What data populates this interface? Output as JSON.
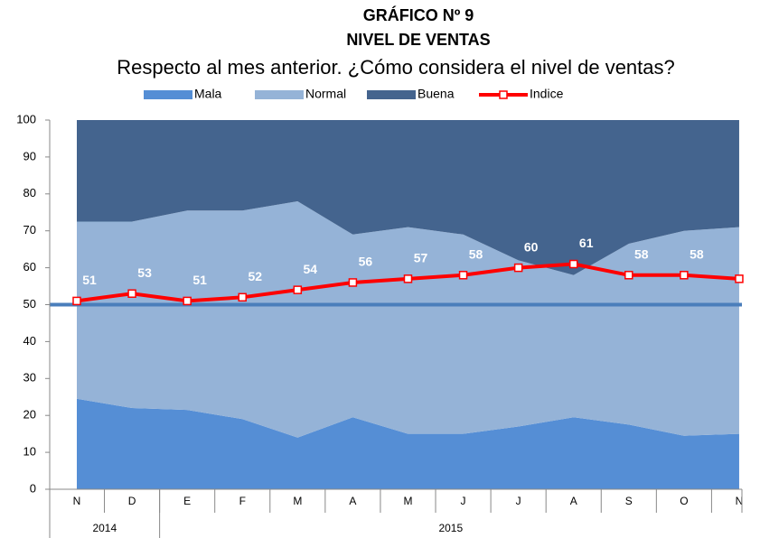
{
  "chart_data": {
    "type": "stacked_area_line",
    "title": "GRÁFICO Nº 9",
    "subtitle": "NIVEL DE VENTAS",
    "question": "Respecto al mes anterior. ¿Cómo considera el nivel de ventas?",
    "categories": [
      "N",
      "D",
      "E",
      "F",
      "M",
      "A",
      "M",
      "J",
      "J",
      "A",
      "S",
      "O",
      "N"
    ],
    "x_groups": [
      {
        "label": "2014",
        "span": 2
      },
      {
        "label": "2015",
        "span": 11
      }
    ],
    "series": [
      {
        "name": "Mala",
        "color": "#558ed5",
        "kind": "area",
        "values": [
          24.5,
          22,
          21.5,
          19,
          14,
          19.5,
          15,
          15,
          17,
          19.5,
          17.5,
          14.5,
          15
        ]
      },
      {
        "name": "Normal",
        "color": "#95b3d7",
        "kind": "area",
        "values": [
          48,
          50.5,
          54,
          56.5,
          64,
          49.5,
          56,
          54,
          45,
          38.5,
          49,
          55.5,
          56
        ]
      },
      {
        "name": "Buena",
        "color": "#44648e",
        "kind": "area",
        "values": [
          27.5,
          27.5,
          24.5,
          24.5,
          22,
          31,
          29,
          31,
          38,
          42,
          33.5,
          30,
          29
        ]
      },
      {
        "name": "Indice",
        "color": "#ff0000",
        "kind": "line",
        "values": [
          51,
          53,
          51,
          52,
          54,
          56,
          57,
          58,
          60,
          61,
          58,
          58,
          57
        ]
      }
    ],
    "reference_line": 50,
    "reference_color": "#4a7ebb",
    "ylim": [
      0,
      100
    ],
    "yticks": [
      0,
      10,
      20,
      30,
      40,
      50,
      60,
      70,
      80,
      90,
      100
    ],
    "legend": "top"
  }
}
